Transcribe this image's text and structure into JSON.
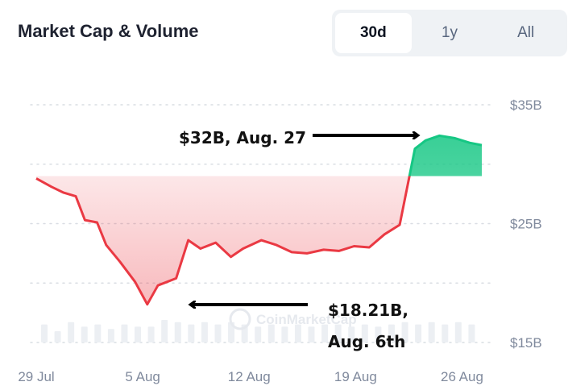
{
  "header": {
    "title": "Market Cap & Volume",
    "ranges": [
      "30d",
      "1y",
      "All"
    ],
    "active_range": "30d"
  },
  "watermark": "CoinMarketCap",
  "annotations": {
    "peak": "$32B, Aug. 27",
    "trough_line1": "$18.21B,",
    "trough_line2": "Aug. 6th"
  },
  "colors": {
    "down_line": "#ea3943",
    "up_line": "#16c784",
    "down_fill": "#ea3943",
    "up_fill": "#16c784",
    "volume_bar": "#eceff3",
    "grid": "#d9dde3",
    "arrow": "#000000"
  },
  "chart_data": {
    "type": "area",
    "title": "Market Cap & Volume",
    "xlabel": "",
    "ylabel": "",
    "baseline": 29,
    "ylim": [
      15,
      35
    ],
    "y_ticks": [
      15,
      25,
      35
    ],
    "y_tick_labels": [
      "$15B",
      "$25B",
      "$35B"
    ],
    "x_ticks": [
      0,
      7,
      14,
      21,
      28
    ],
    "x_tick_labels": [
      "29 Jul",
      "5 Aug",
      "12 Aug",
      "19 Aug",
      "26 Aug"
    ],
    "grid": true,
    "series": [
      {
        "x": [
          0,
          1,
          1.8,
          2.6,
          3.2,
          4,
          4.6,
          5.5,
          6.5,
          7.3,
          8,
          8.6,
          9.2,
          10,
          10.8,
          11.8,
          12.8,
          13.6,
          14.8,
          15.8,
          16.8,
          17.8,
          18.9,
          19.9,
          20.9,
          21.9,
          22.9,
          23.9,
          24.9,
          25.6,
          26.5,
          27.5,
          28.5,
          29.3
        ],
        "y": [
          28.8,
          28.1,
          27.6,
          27.3,
          25.3,
          25.1,
          23.2,
          21.8,
          20.1,
          18.21,
          19.8,
          20.1,
          20.4,
          23.6,
          22.9,
          23.4,
          22.2,
          22.9,
          23.6,
          23.2,
          22.6,
          22.5,
          22.8,
          22.7,
          23.1,
          23.0,
          24.1,
          24.9,
          31.3,
          32.0,
          32.4,
          32.2,
          31.8,
          31.6
        ]
      }
    ],
    "volume": [
      0.8,
      0.5,
      0.9,
      0.7,
      0.8,
      0.6,
      0.8,
      0.7,
      0.7,
      1.0,
      0.9,
      0.8,
      0.9,
      0.8,
      0.9,
      0.8,
      0.7,
      0.8,
      0.7,
      0.8,
      0.7,
      0.8,
      0.8,
      0.7,
      0.8,
      0.7,
      0.8,
      0.9,
      0.8,
      0.9,
      0.8,
      0.9,
      0.8
    ],
    "annotations": [
      {
        "label": "$32B, Aug. 27",
        "x": 28.2,
        "y": 32
      },
      {
        "label": "$18.21B, Aug. 6th",
        "x": 7.3,
        "y": 18.21
      }
    ]
  }
}
